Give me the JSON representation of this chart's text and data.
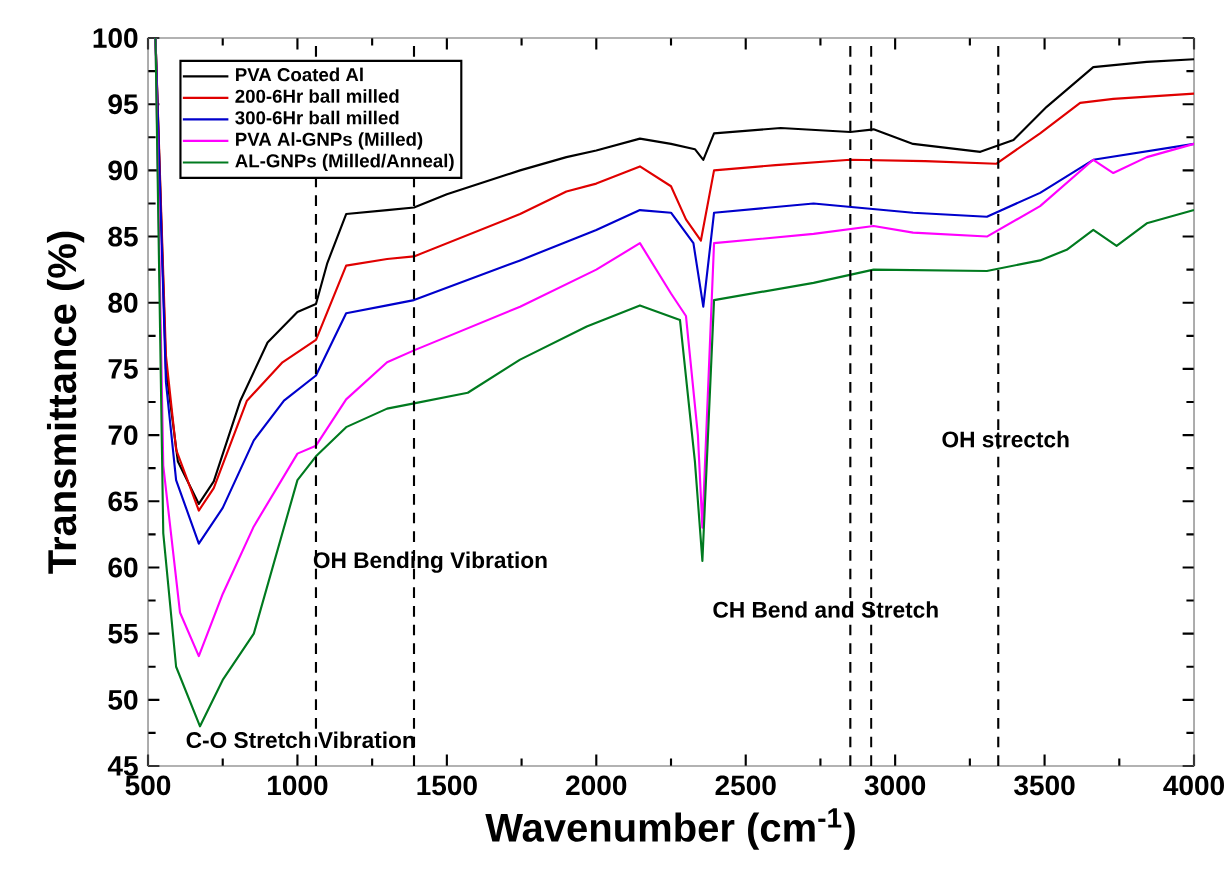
{
  "chart_data": {
    "type": "line",
    "xlabel": "Wavenumber (cm$^{-1}$)",
    "ylabel": "Transmittance (%)",
    "xlim": [
      500,
      4000
    ],
    "ylim": [
      45,
      100
    ],
    "xticks": [
      500,
      1000,
      1500,
      2000,
      2500,
      3000,
      3500,
      4000
    ],
    "yticks": [
      45,
      50,
      55,
      60,
      65,
      70,
      75,
      80,
      85,
      90,
      95,
      100
    ],
    "legend": "top left",
    "marker": "none",
    "line_style": "solid",
    "series": [
      {
        "name": "PVA Coated Al",
        "color": "#000000",
        "x": [
          525,
          560,
          600,
          670,
          720,
          809,
          900,
          1000,
          1062,
          1100,
          1163,
          1300,
          1390,
          1500,
          1745,
          1900,
          2000,
          2146,
          2250,
          2330,
          2358,
          2394,
          2617,
          2850,
          2928,
          3060,
          3285,
          3396,
          3507,
          3663,
          3842,
          4000
        ],
        "values": [
          100,
          75,
          68,
          64.8,
          66.5,
          72.6,
          77,
          79.3,
          79.9,
          83,
          86.7,
          87,
          87.2,
          88.2,
          90,
          91,
          91.5,
          92.4,
          92,
          91.6,
          90.8,
          92.8,
          93.2,
          92.9,
          93.1,
          92,
          91.4,
          92.3,
          94.8,
          97.8,
          98.2,
          98.4
        ]
      },
      {
        "name": "200-6Hr ball milled",
        "color": "#e00000",
        "x": [
          525,
          560,
          594,
          670,
          720,
          831,
          950,
          1062,
          1163,
          1300,
          1390,
          1745,
          1900,
          2000,
          2146,
          2250,
          2300,
          2350,
          2394,
          2600,
          2850,
          3100,
          3338,
          3485,
          3619,
          3730,
          4000
        ],
        "values": [
          100,
          76,
          68.9,
          64.3,
          66,
          72.6,
          75.5,
          77.2,
          82.8,
          83.3,
          83.5,
          86.7,
          88.4,
          89,
          90.3,
          88.8,
          86.3,
          84.7,
          90,
          90.4,
          90.8,
          90.7,
          90.5,
          92.8,
          95.1,
          95.4,
          95.8
        ]
      },
      {
        "name": "300-6Hr ball milled",
        "color": "#0000cc",
        "x": [
          525,
          560,
          594,
          670,
          750,
          854,
          955,
          1062,
          1163,
          1300,
          1390,
          1745,
          2000,
          2146,
          2250,
          2325,
          2358,
          2394,
          2727,
          3060,
          3307,
          3485,
          3663,
          4000
        ],
        "values": [
          100,
          74,
          66.6,
          61.8,
          64.5,
          69.6,
          72.6,
          74.5,
          79.2,
          79.8,
          80.2,
          83.2,
          85.5,
          87,
          86.8,
          84.5,
          79.7,
          86.8,
          87.5,
          86.8,
          86.5,
          88.3,
          90.8,
          92
        ]
      },
      {
        "name": "PVA Al-GNPs (Milled)",
        "color": "#ff00ff",
        "x": [
          525,
          551,
          607,
          670,
          750,
          854,
          1000,
          1062,
          1163,
          1300,
          1390,
          1745,
          2000,
          2146,
          2250,
          2300,
          2340,
          2355,
          2394,
          2727,
          2928,
          3060,
          3307,
          3485,
          3663,
          3730,
          3842,
          4000
        ],
        "values": [
          100,
          67.7,
          56.6,
          53.3,
          58,
          63.1,
          68.6,
          69.2,
          72.7,
          75.5,
          76.4,
          79.7,
          82.5,
          84.5,
          80.7,
          79,
          70,
          63,
          84.5,
          85.2,
          85.8,
          85.3,
          85,
          87.3,
          90.8,
          89.8,
          91,
          92
        ]
      },
      {
        "name": "AL-GNPs (Milled/Anneal)",
        "color": "#007a1f",
        "x": [
          525,
          551,
          594,
          674,
          750,
          854,
          1000,
          1062,
          1163,
          1300,
          1390,
          1570,
          1745,
          1968,
          2146,
          2280,
          2330,
          2355,
          2394,
          2727,
          2928,
          3307,
          3485,
          3574,
          3663,
          3741,
          3842,
          4000
        ],
        "values": [
          100,
          62.6,
          52.5,
          48,
          51.5,
          55,
          66.6,
          68.4,
          70.6,
          72,
          72.4,
          73.2,
          75.7,
          78.2,
          79.8,
          78.7,
          68,
          60.5,
          80.2,
          81.5,
          82.5,
          82.4,
          83.2,
          84,
          85.5,
          84.3,
          86,
          87
        ]
      }
    ],
    "ref_lines": [
      {
        "axis": "x",
        "value": 1062,
        "color": "#000000",
        "line_style": "dashed"
      },
      {
        "axis": "x",
        "value": 1390,
        "color": "#000000",
        "line_style": "dashed"
      },
      {
        "axis": "x",
        "value": 2850,
        "color": "#000000",
        "line_style": "dashed"
      },
      {
        "axis": "x",
        "value": 2920,
        "color": "#000000",
        "line_style": "dashed"
      },
      {
        "axis": "x",
        "value": 3345,
        "color": "#000000",
        "line_style": "dashed"
      }
    ],
    "annotations": [
      "C-O Stretch Vibration",
      "OH Bending Vibration",
      "CH Bend and Stretch",
      "OH strectch"
    ]
  }
}
